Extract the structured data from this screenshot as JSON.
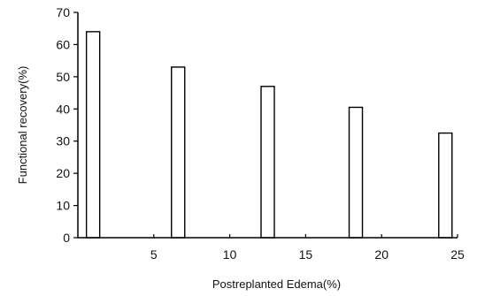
{
  "chart_data": {
    "type": "bar",
    "xlabel": "Postreplanted Edema(%)",
    "ylabel": "Functional recovery(%)",
    "x": [
      1,
      6.6,
      12.5,
      18.3,
      24.2
    ],
    "values": [
      64,
      53,
      47,
      40.5,
      32.5
    ],
    "xlim": [
      0,
      25
    ],
    "ylim": [
      0,
      70
    ],
    "xticks": [
      5,
      10,
      15,
      20,
      25
    ],
    "yticks": [
      0,
      10,
      20,
      30,
      40,
      50,
      60,
      70
    ],
    "grid": false,
    "legend": "none",
    "bar_fill": "#ffffff",
    "bar_stroke": "#000000"
  }
}
